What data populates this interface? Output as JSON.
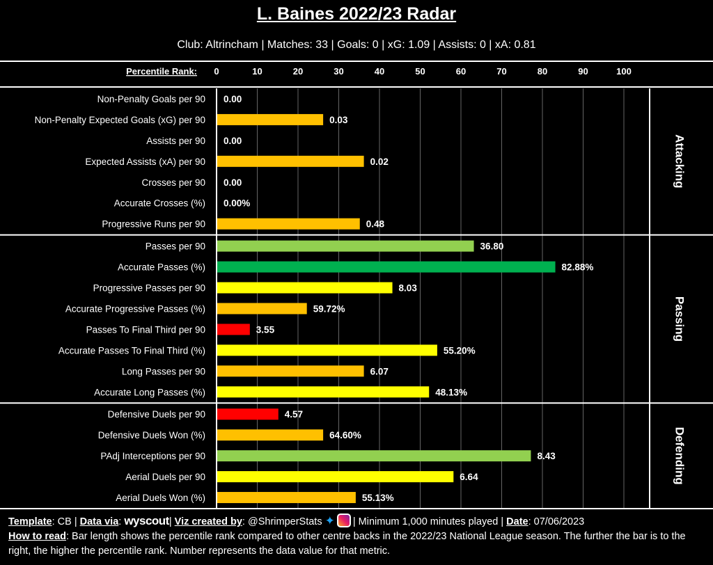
{
  "header": {
    "title": "L. Baines 2022/23 Radar",
    "subtitle": "Club: Altrincham | Matches: 33 | Goals: 0 | xG: 1.09 | Assists: 0 | xA: 0.81"
  },
  "colors": {
    "red": "#ff0000",
    "orange": "#ffc000",
    "yellow": "#ffff00",
    "light_green": "#92d050",
    "green": "#00b050"
  },
  "chart_data": {
    "type": "bar",
    "orientation": "horizontal",
    "xlabel": "Percentile Rank:",
    "xlim": [
      0,
      100
    ],
    "xticks": [
      0,
      10,
      20,
      30,
      40,
      50,
      60,
      70,
      80,
      90,
      100
    ],
    "grid": true,
    "groups": [
      {
        "name": "Attacking",
        "metrics": [
          {
            "label": "Non-Penalty Goals per 90",
            "percentile": 0,
            "value": "0.00"
          },
          {
            "label": "Non-Penalty Expected Goals (xG) per 90",
            "percentile": 26,
            "value": "0.03"
          },
          {
            "label": "Assists per 90",
            "percentile": 0,
            "value": "0.00"
          },
          {
            "label": "Expected Assists (xA) per 90",
            "percentile": 36,
            "value": "0.02"
          },
          {
            "label": "Crosses per 90",
            "percentile": 0,
            "value": "0.00"
          },
          {
            "label": "Accurate Crosses (%)",
            "percentile": 0,
            "value": "0.00%"
          },
          {
            "label": "Progressive Runs per 90",
            "percentile": 35,
            "value": "0.48"
          }
        ]
      },
      {
        "name": "Passing",
        "metrics": [
          {
            "label": "Passes per 90",
            "percentile": 63,
            "value": "36.80"
          },
          {
            "label": "Accurate Passes (%)",
            "percentile": 83,
            "value": "82.88%"
          },
          {
            "label": "Progressive Passes per 90",
            "percentile": 43,
            "value": "8.03"
          },
          {
            "label": "Accurate Progressive Passes (%)",
            "percentile": 22,
            "value": "59.72%"
          },
          {
            "label": "Passes To Final Third per 90",
            "percentile": 8,
            "value": "3.55"
          },
          {
            "label": "Accurate Passes To Final Third (%)",
            "percentile": 54,
            "value": "55.20%"
          },
          {
            "label": "Long Passes per 90",
            "percentile": 36,
            "value": "6.07"
          },
          {
            "label": "Accurate Long Passes (%)",
            "percentile": 52,
            "value": "48.13%"
          }
        ]
      },
      {
        "name": "Defending",
        "metrics": [
          {
            "label": "Defensive Duels per 90",
            "percentile": 15,
            "value": "4.57"
          },
          {
            "label": "Defensive Duels Won (%)",
            "percentile": 26,
            "value": "64.60%"
          },
          {
            "label": "PAdj Interceptions per 90",
            "percentile": 77,
            "value": "8.43"
          },
          {
            "label": "Aerial Duels per 90",
            "percentile": 58,
            "value": "6.64"
          },
          {
            "label": "Aerial Duels Won (%)",
            "percentile": 34,
            "value": "55.13%"
          }
        ]
      }
    ]
  },
  "footer": {
    "template_label": "Template",
    "template_value": "CB",
    "data_via_label": "Data via",
    "data_source": "wyscout",
    "viz_label": "Viz created by",
    "viz_value": "@ShrimperStats",
    "minimum": "Minimum 1,000 minutes played",
    "date_label": "Date",
    "date_value": "07/06/2023",
    "how_label": "How to read",
    "how_text": "Bar length shows the percentile rank compared to other centre backs in the 2022/23 National League season. The further the bar is to the right, the higher the percentile rank. Number represents the data value for that metric."
  }
}
